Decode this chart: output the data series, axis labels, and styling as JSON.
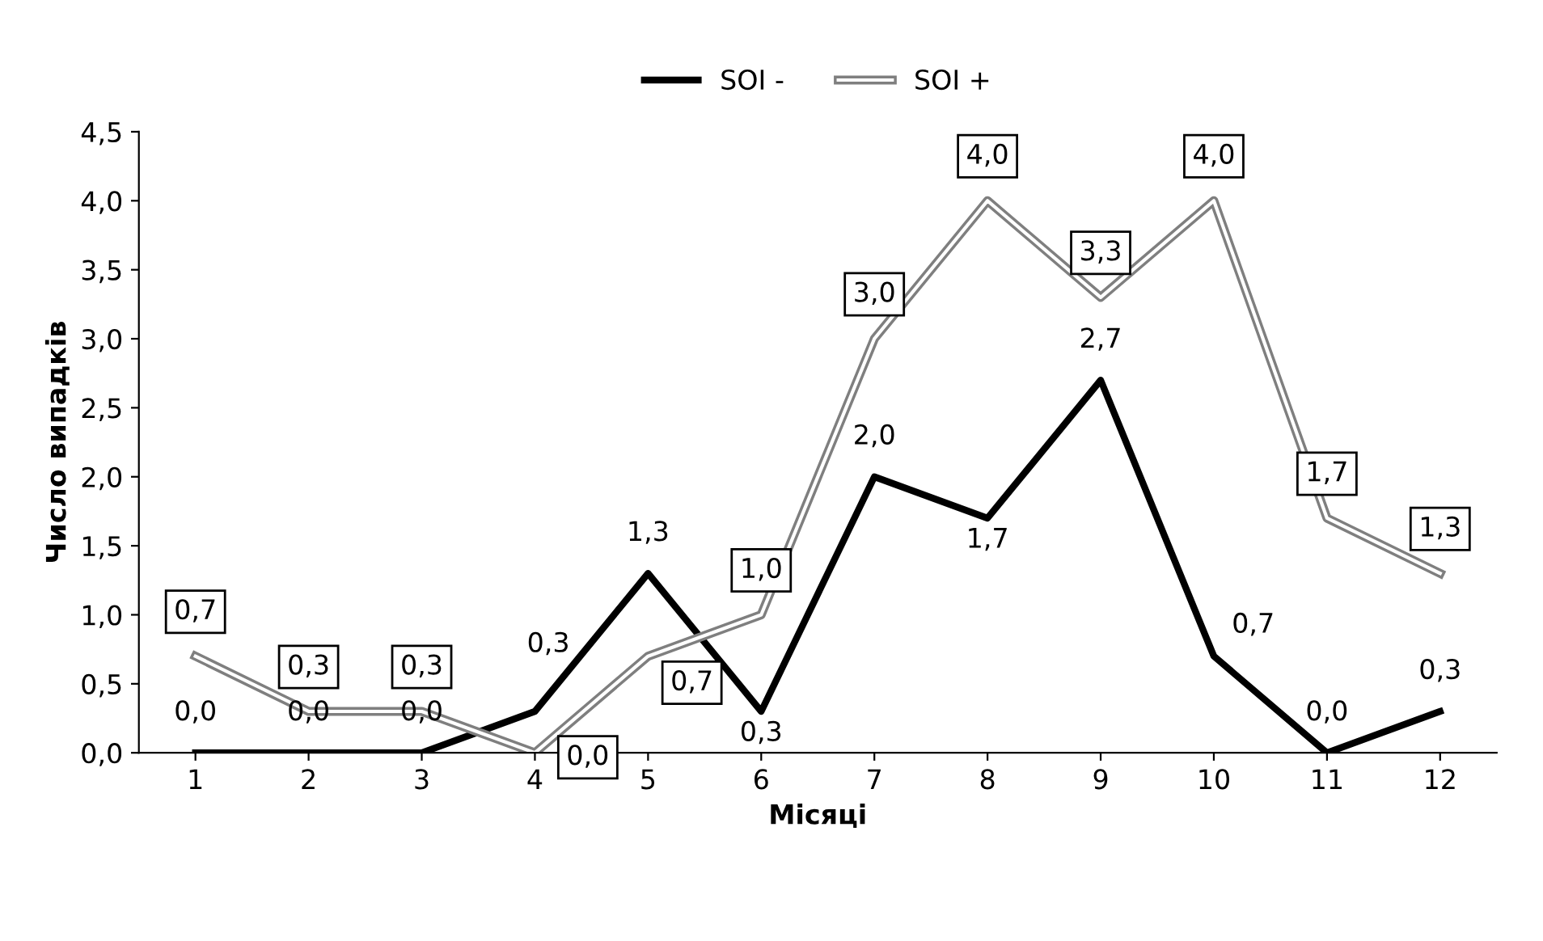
{
  "chart_data": {
    "type": "line",
    "xlabel": "Місяці",
    "ylabel": "Число випадків",
    "categories": [
      "1",
      "2",
      "3",
      "4",
      "5",
      "6",
      "7",
      "8",
      "9",
      "10",
      "11",
      "12"
    ],
    "series": [
      {
        "name": "SOI -",
        "color": "#000000",
        "values": [
          0.0,
          0.0,
          0.0,
          0.3,
          1.3,
          0.3,
          2.0,
          1.7,
          2.7,
          0.7,
          0.0,
          0.3
        ],
        "value_labels": [
          "0,0",
          "0,0",
          "0,0",
          "0,3",
          "1,3",
          "0,3",
          "2,0",
          "1,7",
          "2,7",
          "0,7",
          "0,0",
          "0,3"
        ]
      },
      {
        "name": "SOI +",
        "color": "#7f7f7f",
        "values": [
          0.7,
          0.3,
          0.3,
          0.0,
          0.7,
          1.0,
          3.0,
          4.0,
          3.3,
          4.0,
          1.7,
          1.3
        ],
        "value_labels": [
          "0,7",
          "0,3",
          "0,3",
          "0,0",
          "0,7",
          "1,0",
          "3,0",
          "4,0",
          "3,3",
          "4,0",
          "1,7",
          "1,3"
        ]
      }
    ],
    "ylim": [
      0,
      4.5
    ],
    "yticks": [
      {
        "value": 0,
        "label": "0,0"
      },
      {
        "value": 0.5,
        "label": "0,5"
      },
      {
        "value": 1,
        "label": "1,0"
      },
      {
        "value": 1.5,
        "label": "1,5"
      },
      {
        "value": 2,
        "label": "2,0"
      },
      {
        "value": 2.5,
        "label": "2,5"
      },
      {
        "value": 3,
        "label": "3,0"
      },
      {
        "value": 3.5,
        "label": "3,5"
      },
      {
        "value": 4,
        "label": "4,0"
      },
      {
        "value": 4.5,
        "label": "4,5"
      }
    ],
    "legend": "top",
    "grid": false,
    "marker": "none"
  }
}
